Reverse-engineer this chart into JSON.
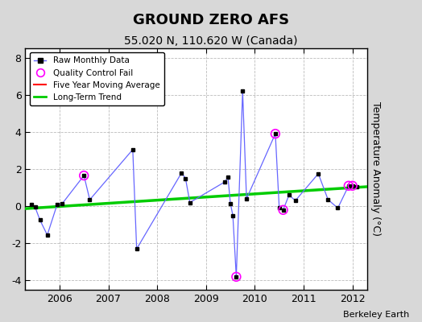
{
  "title": "GROUND ZERO AFS",
  "subtitle": "55.020 N, 110.620 W (Canada)",
  "watermark": "Berkeley Earth",
  "ylabel": "Temperature Anomaly (°C)",
  "ylim": [
    -4.5,
    8.5
  ],
  "xlim": [
    2005.3,
    2012.3
  ],
  "yticks": [
    -4,
    -2,
    0,
    2,
    4,
    6,
    8
  ],
  "xticks": [
    2006,
    2007,
    2008,
    2009,
    2010,
    2011,
    2012
  ],
  "raw_data": [
    [
      2005.42,
      0.08
    ],
    [
      2005.5,
      -0.05
    ],
    [
      2005.6,
      -0.75
    ],
    [
      2005.75,
      -1.55
    ],
    [
      2005.95,
      0.08
    ],
    [
      2006.05,
      0.12
    ],
    [
      2006.5,
      1.65
    ],
    [
      2006.62,
      0.35
    ],
    [
      2007.5,
      3.05
    ],
    [
      2007.58,
      -2.3
    ],
    [
      2008.5,
      1.8
    ],
    [
      2008.58,
      1.5
    ],
    [
      2008.67,
      0.2
    ],
    [
      2009.38,
      1.3
    ],
    [
      2009.45,
      1.55
    ],
    [
      2009.5,
      0.15
    ],
    [
      2009.55,
      -0.5
    ],
    [
      2009.62,
      -3.8
    ],
    [
      2009.75,
      6.2
    ],
    [
      2009.83,
      0.4
    ],
    [
      2010.42,
      3.9
    ],
    [
      2010.5,
      -0.1
    ],
    [
      2010.58,
      -0.2
    ],
    [
      2010.7,
      0.6
    ],
    [
      2010.83,
      0.3
    ],
    [
      2011.3,
      1.75
    ],
    [
      2011.5,
      0.35
    ],
    [
      2011.7,
      -0.1
    ],
    [
      2011.92,
      1.1
    ],
    [
      2012.0,
      1.1
    ],
    [
      2012.08,
      1.05
    ]
  ],
  "qc_fail_points": [
    [
      2006.5,
      1.65
    ],
    [
      2009.62,
      -3.8
    ],
    [
      2010.42,
      3.9
    ],
    [
      2010.58,
      -0.2
    ],
    [
      2011.92,
      1.1
    ],
    [
      2012.0,
      1.1
    ]
  ],
  "trend_x": [
    2005.3,
    2012.3
  ],
  "trend_y": [
    -0.13,
    1.05
  ],
  "raw_line_color": "#6666ff",
  "raw_marker_color": "#000000",
  "trend_color": "#00cc00",
  "moving_avg_color": "#ff0000",
  "qc_color": "#ff00ff",
  "fig_bg_color": "#d8d8d8",
  "plot_bg_color": "#ffffff",
  "title_fontsize": 13,
  "subtitle_fontsize": 10,
  "tick_fontsize": 9,
  "ylabel_fontsize": 9
}
